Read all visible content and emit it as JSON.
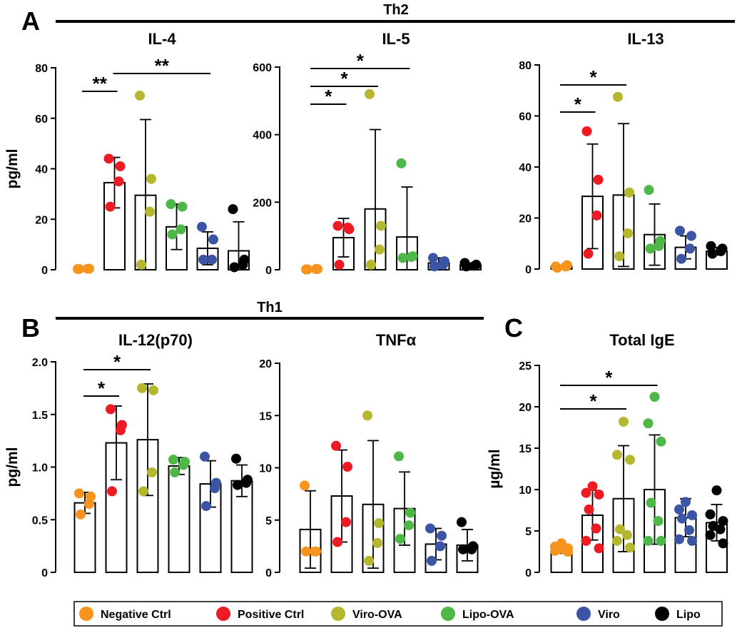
{
  "panels": {
    "A": {
      "letter": "A",
      "group": "Th2"
    },
    "B": {
      "letter": "B",
      "group": "Th1"
    },
    "C": {
      "letter": "C"
    }
  },
  "legend": [
    {
      "label": "Negative Ctrl",
      "color": "#F7941D"
    },
    {
      "label": "Positive Ctrl",
      "color": "#ED1C24"
    },
    {
      "label": "Viro-OVA",
      "color": "#B5B82F"
    },
    {
      "label": "Lipo-OVA",
      "color": "#4DB848"
    },
    {
      "label": "Viro",
      "color": "#3B55A4"
    },
    {
      "label": "Lipo",
      "color": "#000000"
    }
  ],
  "chart_data": [
    {
      "type": "bar",
      "panel": "A",
      "title": "IL-4",
      "ylabel": "pg/ml",
      "ylim": [
        0,
        80
      ],
      "yticks": [
        "0",
        "20",
        "40",
        "60",
        "80"
      ],
      "groups": [
        {
          "mean": 0,
          "sd": 0,
          "points": [
            0.3,
            0.4,
            0.4,
            0.3
          ]
        },
        {
          "mean": 34.5,
          "sd": 10,
          "points": [
            44,
            41,
            35,
            25
          ]
        },
        {
          "mean": 29.5,
          "sd": 30,
          "points": [
            69,
            36,
            23,
            2
          ]
        },
        {
          "mean": 17,
          "sd": 9,
          "points": [
            26,
            25,
            16,
            14
          ]
        },
        {
          "mean": 8.5,
          "sd": 6.5,
          "points": [
            17,
            12,
            4,
            4
          ]
        },
        {
          "mean": 7.5,
          "sd": 11.5,
          "points": [
            24,
            4,
            2,
            1
          ]
        }
      ],
      "significance": [
        {
          "from": 0,
          "to": 1,
          "label": "**"
        },
        {
          "from": 1,
          "to": 4,
          "label": "**"
        }
      ]
    },
    {
      "type": "bar",
      "panel": "A",
      "title": "IL-5",
      "ylabel": "",
      "ylim": [
        0,
        600
      ],
      "yticks": [
        "0",
        "200",
        "400",
        "600"
      ],
      "groups": [
        {
          "mean": 0,
          "sd": 0,
          "points": [
            1,
            2,
            2,
            1
          ]
        },
        {
          "mean": 95,
          "sd": 57,
          "points": [
            130,
            120,
            125,
            15
          ]
        },
        {
          "mean": 180,
          "sd": 235,
          "points": [
            520,
            130,
            60,
            15
          ]
        },
        {
          "mean": 97,
          "sd": 148,
          "points": [
            315,
            40,
            38,
            35
          ]
        },
        {
          "mean": 20,
          "sd": 15,
          "points": [
            35,
            25,
            15,
            10
          ]
        },
        {
          "mean": 14,
          "sd": 6,
          "points": [
            20,
            15,
            12,
            10
          ]
        }
      ],
      "significance": [
        {
          "from": 0,
          "to": 1,
          "label": "*"
        },
        {
          "from": 0,
          "to": 2,
          "label": "*"
        },
        {
          "from": 0,
          "to": 3,
          "label": "*"
        }
      ]
    },
    {
      "type": "bar",
      "panel": "A",
      "title": "IL-13",
      "ylabel": "",
      "ylim": [
        0,
        80
      ],
      "yticks": [
        "0",
        "20",
        "40",
        "60",
        "80"
      ],
      "groups": [
        {
          "mean": 1,
          "sd": 0.5,
          "points": [
            1,
            1.5,
            1,
            0.5
          ]
        },
        {
          "mean": 28.5,
          "sd": 20.5,
          "points": [
            54,
            35,
            21,
            6
          ]
        },
        {
          "mean": 29,
          "sd": 28,
          "points": [
            67.5,
            30,
            14,
            5
          ]
        },
        {
          "mean": 13.5,
          "sd": 12,
          "points": [
            31,
            11,
            9,
            8
          ]
        },
        {
          "mean": 8.5,
          "sd": 4.5,
          "points": [
            15,
            13,
            8,
            4
          ]
        },
        {
          "mean": 7,
          "sd": 1.5,
          "points": [
            9,
            8,
            7,
            6
          ]
        }
      ],
      "significance": [
        {
          "from": 0,
          "to": 1,
          "label": "*"
        },
        {
          "from": 0,
          "to": 2,
          "label": "*"
        }
      ]
    },
    {
      "type": "bar",
      "panel": "B",
      "title": "IL-12(p70)",
      "ylabel": "pg/ml",
      "ylim": [
        0,
        2.0
      ],
      "yticks": [
        "0",
        "0.5",
        "1.0",
        "1.5",
        "2.0"
      ],
      "groups": [
        {
          "mean": 0.66,
          "sd": 0.1,
          "points": [
            0.75,
            0.72,
            0.65,
            0.55
          ]
        },
        {
          "mean": 1.23,
          "sd": 0.35,
          "points": [
            1.55,
            1.4,
            1.35,
            0.77
          ]
        },
        {
          "mean": 1.26,
          "sd": 0.53,
          "points": [
            1.75,
            1.73,
            0.95,
            0.77
          ]
        },
        {
          "mean": 1.01,
          "sd": 0.08,
          "points": [
            1.07,
            1.05,
            1.02,
            0.95
          ]
        },
        {
          "mean": 0.84,
          "sd": 0.22,
          "points": [
            1.1,
            0.85,
            0.8,
            0.63
          ]
        },
        {
          "mean": 0.87,
          "sd": 0.15,
          "points": [
            1.08,
            0.88,
            0.85,
            0.83
          ]
        }
      ],
      "significance": [
        {
          "from": 0,
          "to": 1,
          "label": "*"
        },
        {
          "from": 0,
          "to": 2,
          "label": "*"
        }
      ]
    },
    {
      "type": "bar",
      "panel": "B",
      "title": "TNFα",
      "ylabel": "",
      "ylim": [
        0,
        20
      ],
      "yticks": [
        "0",
        "5",
        "10",
        "15",
        "20"
      ],
      "groups": [
        {
          "mean": 4.1,
          "sd": 3.7,
          "points": [
            8.3,
            2,
            2,
            2
          ]
        },
        {
          "mean": 7.3,
          "sd": 4.4,
          "points": [
            12.1,
            10.1,
            4.8,
            2.9
          ]
        },
        {
          "mean": 6.5,
          "sd": 6.1,
          "points": [
            15,
            4.7,
            2.8,
            1.1
          ]
        },
        {
          "mean": 6.1,
          "sd": 3.5,
          "points": [
            11.1,
            5.7,
            4.5,
            3.2
          ]
        },
        {
          "mean": 2.7,
          "sd": 1.5,
          "points": [
            4.2,
            3.5,
            2.5,
            1.1
          ]
        },
        {
          "mean": 2.6,
          "sd": 1.5,
          "points": [
            4.8,
            2.5,
            2.2,
            2.2
          ]
        }
      ],
      "significance": []
    },
    {
      "type": "bar",
      "panel": "C",
      "title": "Total IgE",
      "ylabel": "µg/ml",
      "ylim": [
        0,
        25
      ],
      "yticks": [
        "0",
        "5",
        "10",
        "15",
        "20",
        "25"
      ],
      "groups": [
        {
          "mean": 2.8,
          "sd": 0.5,
          "points": [
            3.5,
            3.1,
            2.9,
            2.8,
            2.7,
            2.6,
            2.5
          ]
        },
        {
          "mean": 6.9,
          "sd": 3.0,
          "points": [
            10.4,
            9.6,
            9.4,
            7.6,
            5.3,
            3.8,
            2.9
          ]
        },
        {
          "mean": 8.9,
          "sd": 6.4,
          "points": [
            18.2,
            14.2,
            13.6,
            5.2,
            4.5,
            3.8,
            3.0
          ]
        },
        {
          "mean": 10.0,
          "sd": 6.6,
          "points": [
            21.2,
            18.0,
            15.8,
            8.4,
            6.2,
            3.8,
            3.8
          ]
        },
        {
          "mean": 6.6,
          "sd": 2.3,
          "points": [
            8.5,
            7.6,
            6.9,
            6.5,
            5.1,
            4.0,
            3.8
          ]
        },
        {
          "mean": 6.0,
          "sd": 2.2,
          "points": [
            9.9,
            7.0,
            6.2,
            5.6,
            5.2,
            4.5,
            3.5
          ]
        }
      ],
      "significance": [
        {
          "from": 0,
          "to": 2,
          "label": "*"
        },
        {
          "from": 0,
          "to": 3,
          "label": "*"
        }
      ]
    }
  ]
}
